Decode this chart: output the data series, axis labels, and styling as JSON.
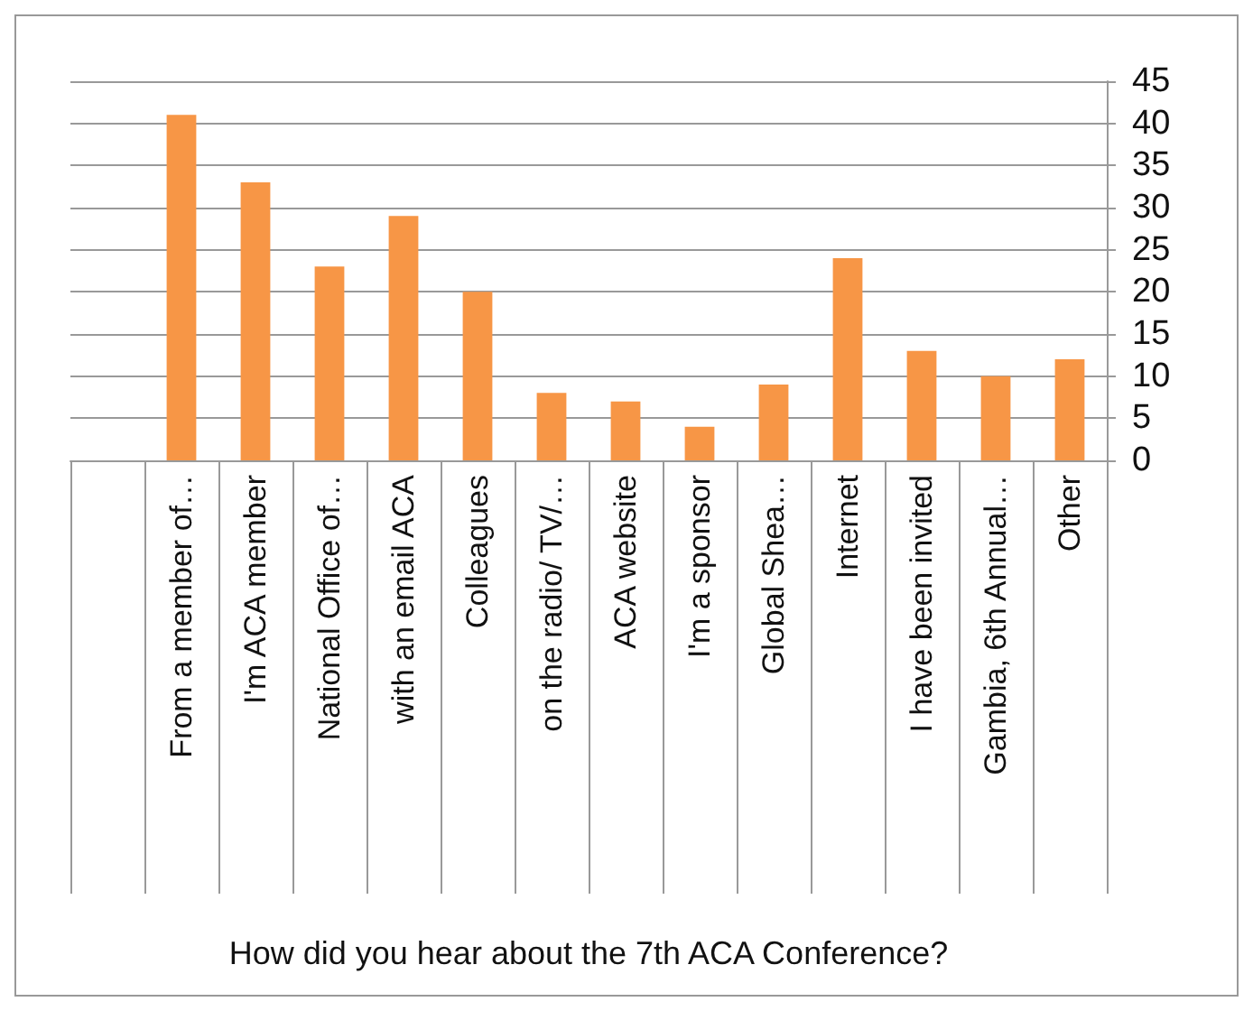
{
  "chart_data": {
    "type": "bar",
    "xlabel": "How did you hear about the 7th ACA Conference?",
    "categories": [
      null,
      "From a member of…",
      "I'm ACA member",
      "National Office of…",
      "with an email ACA",
      "Colleagues",
      "on the radio/ TV/…",
      "ACA website",
      "I'm a sponsor",
      "Global Shea…",
      "Internet",
      "I have been invited",
      "Gambia, 6th Annual…",
      "Other"
    ],
    "values": [
      null,
      41,
      33,
      23,
      29,
      20,
      8,
      7,
      4,
      9,
      24,
      13,
      10,
      12
    ],
    "color": "#f79646",
    "ylim": [
      0,
      45
    ],
    "yticks": [
      0,
      5,
      10,
      15,
      20,
      25,
      30,
      35,
      40,
      45
    ],
    "grid": "y"
  }
}
